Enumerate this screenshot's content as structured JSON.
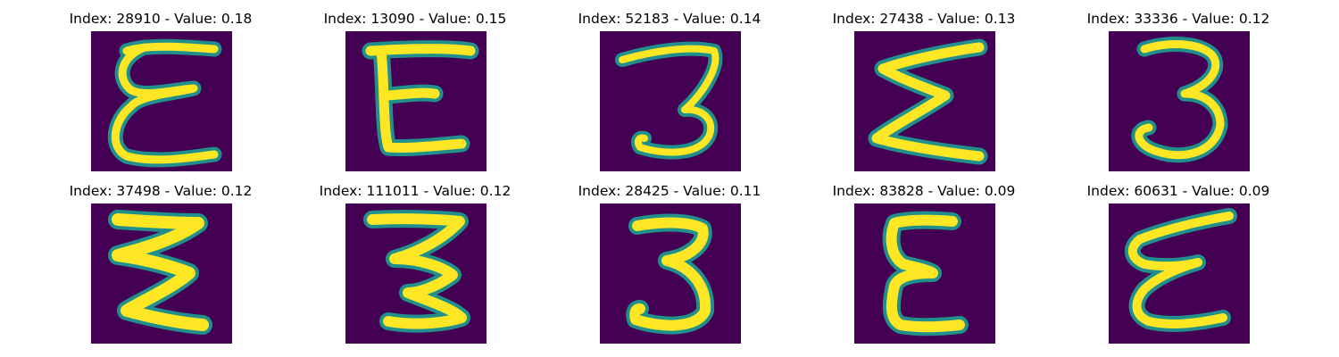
{
  "figure": {
    "colors": {
      "background": "#440154",
      "mid": "#21908d",
      "high": "#fde725"
    },
    "panels": [
      {
        "title": "Index: 28910 - Value: 0.18",
        "glyph": "epsilon-looped"
      },
      {
        "title": "Index: 13090 - Value: 0.15",
        "glyph": "capital-E"
      },
      {
        "title": "Index: 52183 - Value: 0.14",
        "glyph": "digit-3"
      },
      {
        "title": "Index: 27438 - Value: 0.13",
        "glyph": "zigzag-E"
      },
      {
        "title": "Index: 33336 - Value: 0.12",
        "glyph": "digit-3-curly"
      },
      {
        "title": "Index: 37498 - Value: 0.12",
        "glyph": "zigzag-3"
      },
      {
        "title": "Index: 111011 - Value: 0.12",
        "glyph": "zigzag-3"
      },
      {
        "title": "Index: 28425 - Value: 0.11",
        "glyph": "digit-3-flat"
      },
      {
        "title": "Index: 83828 - Value: 0.09",
        "glyph": "epsilon"
      },
      {
        "title": "Index: 60631 - Value: 0.09",
        "glyph": "epsilon-slanted"
      }
    ]
  }
}
